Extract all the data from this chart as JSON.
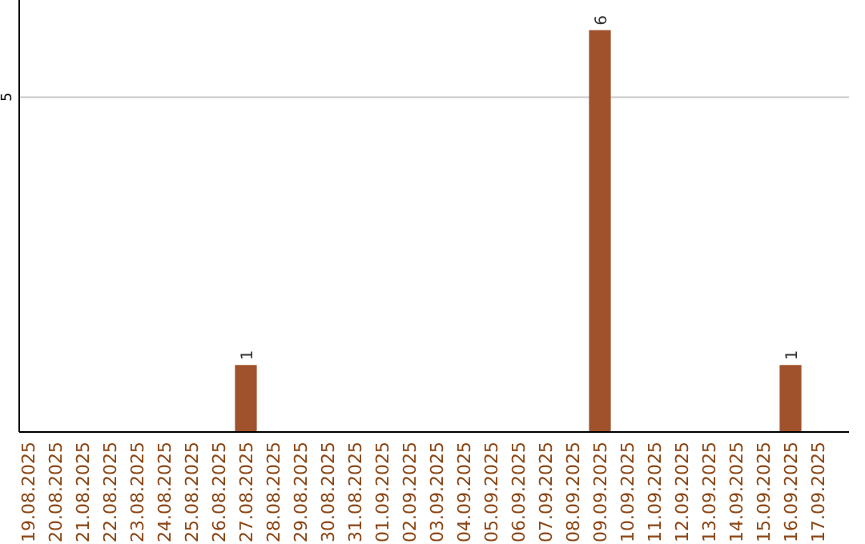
{
  "chart_data": {
    "type": "bar",
    "categories": [
      "19.08.2025",
      "20.08.2025",
      "21.08.2025",
      "22.08.2025",
      "23.08.2025",
      "24.08.2025",
      "25.08.2025",
      "26.08.2025",
      "27.08.2025",
      "28.08.2025",
      "29.08.2025",
      "30.08.2025",
      "31.08.2025",
      "01.09.2025",
      "02.09.2025",
      "03.09.2025",
      "04.09.2025",
      "05.09.2025",
      "06.09.2025",
      "07.09.2025",
      "08.09.2025",
      "09.09.2025",
      "10.09.2025",
      "11.09.2025",
      "12.09.2025",
      "13.09.2025",
      "14.09.2025",
      "15.09.2025",
      "16.09.2025",
      "17.09.2025"
    ],
    "values": [
      0,
      0,
      0,
      0,
      0,
      0,
      0,
      0,
      1,
      0,
      0,
      0,
      0,
      0,
      0,
      0,
      0,
      0,
      0,
      0,
      0,
      6,
      0,
      0,
      0,
      0,
      0,
      0,
      1,
      0
    ],
    "value_labels": [
      null,
      null,
      null,
      null,
      null,
      null,
      null,
      null,
      "1",
      null,
      null,
      null,
      null,
      null,
      null,
      null,
      null,
      null,
      null,
      null,
      null,
      "6",
      null,
      null,
      null,
      null,
      null,
      null,
      "1",
      null
    ],
    "color": "#a0522d",
    "ylim": [
      0,
      6.45
    ],
    "yticks": [
      5
    ],
    "grid": "y"
  }
}
